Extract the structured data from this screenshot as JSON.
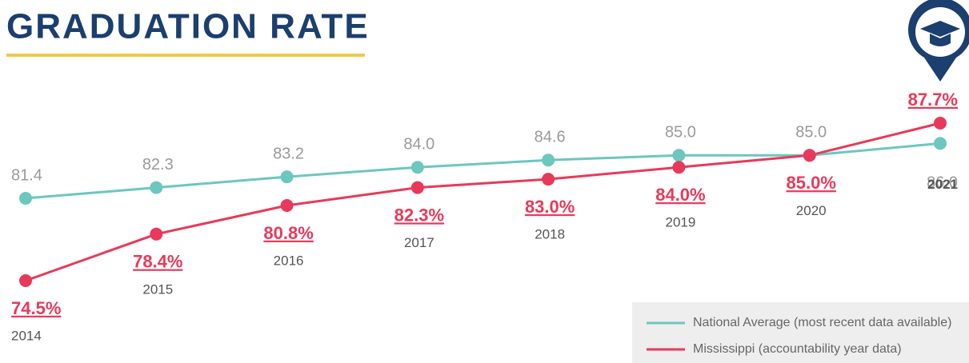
{
  "chart_data": {
    "type": "line",
    "title": "GRADUATION RATE",
    "categories": [
      "2014",
      "2015",
      "2016",
      "2017",
      "2018",
      "2019",
      "2020",
      "2021"
    ],
    "series": [
      {
        "name": "National Average (most recent data available)",
        "color": "#6cc7be",
        "values": [
          81.4,
          82.3,
          83.2,
          84.0,
          84.6,
          85.0,
          85.0,
          86.0
        ],
        "value_labels": [
          "81.4",
          "82.3",
          "83.2",
          "84.0",
          "84.6",
          "85.0",
          "85.0",
          "86.0"
        ]
      },
      {
        "name": "Mississippi (accountability year data)",
        "color": "#e8395a",
        "values": [
          74.5,
          78.4,
          80.8,
          82.3,
          83.0,
          84.0,
          85.0,
          87.7
        ],
        "value_labels": [
          "74.5%",
          "78.4%",
          "80.8%",
          "82.3%",
          "83.0%",
          "84.0%",
          "85.0%",
          "87.7%"
        ]
      }
    ],
    "grid": false
  }
}
